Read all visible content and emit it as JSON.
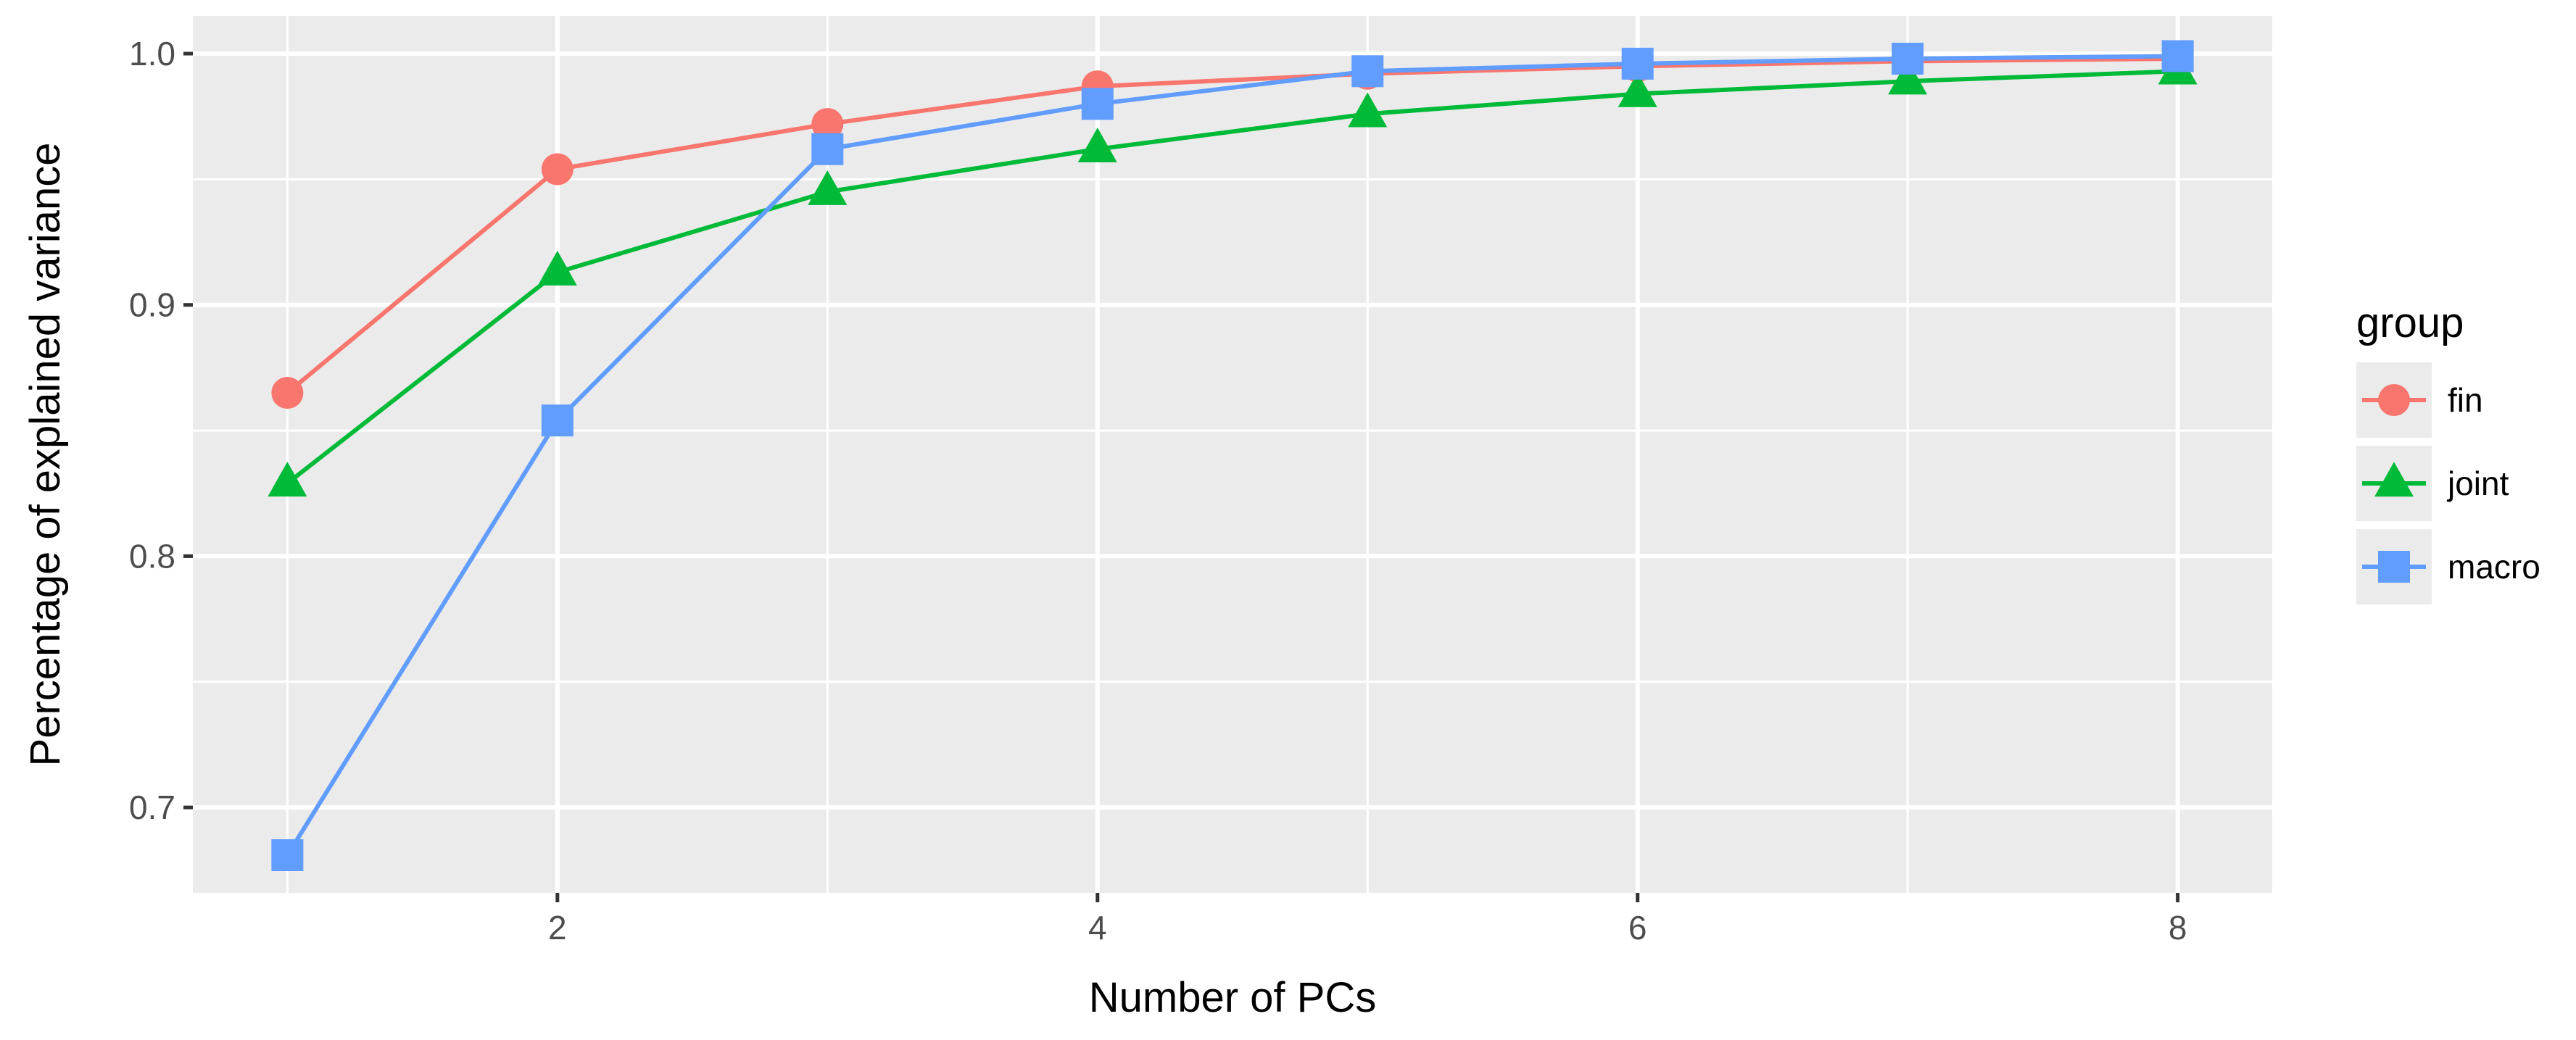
{
  "chart_data": {
    "type": "line",
    "title": "",
    "xlabel": "Number of PCs",
    "ylabel": "Percentage of explained variance",
    "xlim": [
      0.65,
      8.35
    ],
    "ylim": [
      0.666,
      1.015
    ],
    "x_ticks": [
      2,
      4,
      6,
      8
    ],
    "x_tick_labels": [
      "2",
      "4",
      "6",
      "8"
    ],
    "y_ticks": [
      0.7,
      0.8,
      0.9,
      1.0
    ],
    "y_tick_labels": [
      "0.7",
      "0.8",
      "0.9",
      "1.0"
    ],
    "grid": true,
    "legend": {
      "title": "group",
      "position": "right"
    },
    "x": [
      1,
      2,
      3,
      4,
      5,
      6,
      7,
      8
    ],
    "series": [
      {
        "name": "fin",
        "color": "#F8766D",
        "marker": "circle",
        "values": [
          0.865,
          0.954,
          0.972,
          0.987,
          0.992,
          0.995,
          0.997,
          0.998
        ]
      },
      {
        "name": "joint",
        "color": "#00BA38",
        "marker": "triangle",
        "values": [
          0.829,
          0.913,
          0.945,
          0.962,
          0.976,
          0.984,
          0.989,
          0.993
        ]
      },
      {
        "name": "macro",
        "color": "#619CFF",
        "marker": "square",
        "values": [
          0.681,
          0.854,
          0.962,
          0.98,
          0.993,
          0.996,
          0.998,
          0.999
        ]
      }
    ],
    "panel_background": "#EBEBEB",
    "grid_color": "#FFFFFF"
  }
}
